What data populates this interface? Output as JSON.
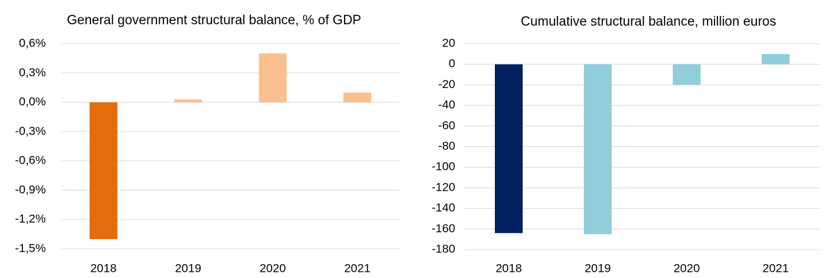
{
  "chart_data": [
    {
      "type": "bar",
      "title": "General government structural balance, % of GDP",
      "categories": [
        "2018",
        "2019",
        "2020",
        "2021"
      ],
      "values": [
        -1.4,
        0.03,
        0.5,
        0.1
      ],
      "colors": [
        "#e46c0a",
        "#fac090",
        "#fac090",
        "#fac090"
      ],
      "ylim": [
        -1.5,
        0.6
      ],
      "yticks": [
        {
          "value": 0.6,
          "label": "0,6%"
        },
        {
          "value": 0.3,
          "label": "0,3%"
        },
        {
          "value": 0,
          "label": "0,0%"
        },
        {
          "value": -0.3,
          "label": "-0,3%"
        },
        {
          "value": -0.6,
          "label": "-0,6%"
        },
        {
          "value": -0.9,
          "label": "-0,9%"
        },
        {
          "value": -1.2,
          "label": "-1,2%"
        },
        {
          "value": -1.5,
          "label": "-1,5%"
        }
      ],
      "grid": true
    },
    {
      "type": "bar",
      "title": "Cumulative structural balance, million euros",
      "categories": [
        "2018",
        "2019",
        "2020",
        "2021"
      ],
      "values": [
        -164,
        -165,
        -20,
        10
      ],
      "colors": [
        "#002060",
        "#92cddc",
        "#92cddc",
        "#92cddc"
      ],
      "ylim": [
        -180,
        20
      ],
      "yticks": [
        20,
        0,
        -20,
        -40,
        -60,
        -80,
        -100,
        -120,
        -140,
        -160,
        -180
      ],
      "grid": true
    }
  ]
}
